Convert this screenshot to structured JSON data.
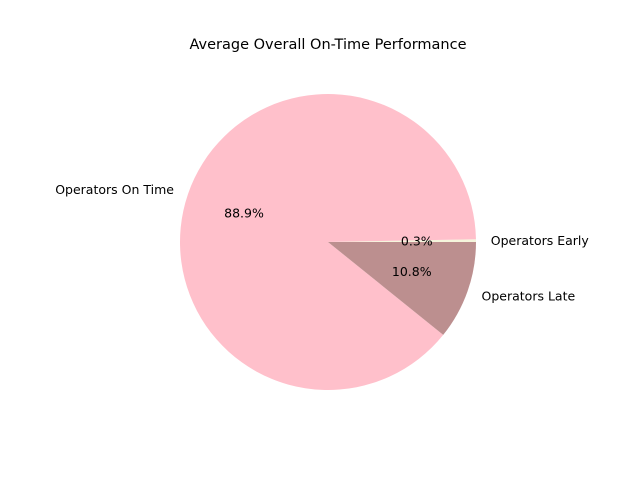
{
  "chart_data": {
    "type": "pie",
    "title": "Average Overall On-Time Performance",
    "slices": [
      {
        "label": "Operators Early",
        "value": 0.3,
        "pct_label": "0.3%",
        "color": "#f5f5dc"
      },
      {
        "label": "Operators On Time",
        "value": 88.9,
        "pct_label": "88.9%",
        "color": "#ffc0cb"
      },
      {
        "label": "Operators Late",
        "value": 10.8,
        "pct_label": "10.8%",
        "color": "#bc8f8f"
      }
    ],
    "start_angle_deg": 0,
    "direction": "counterclockwise",
    "legend": "none"
  }
}
